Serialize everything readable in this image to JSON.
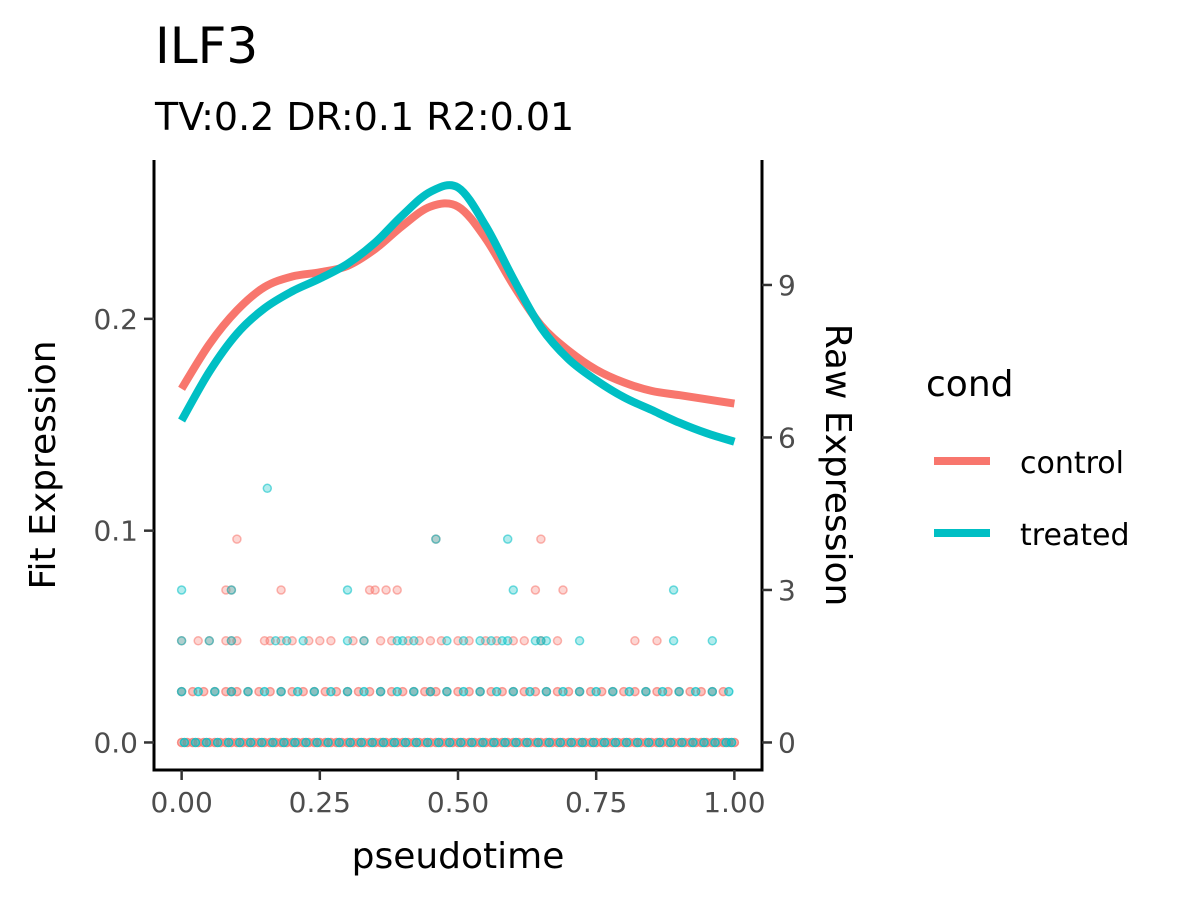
{
  "chart_data": {
    "type": "line",
    "title": "ILF3",
    "subtitle": "TV:0.2 DR:0.1 R2:0.01",
    "xlabel": "pseudotime",
    "ylabel_left": "Fit Expression",
    "ylabel_right": "Raw Expression",
    "xlim": [
      -0.05,
      1.05
    ],
    "ylim_left": [
      -0.013,
      0.275
    ],
    "ylim_right": [
      -0.542,
      11.46
    ],
    "right_axis_scale": 0.024,
    "x_ticks": [
      0.0,
      0.25,
      0.5,
      0.75,
      1.0
    ],
    "x_tick_labels": [
      "0.00",
      "0.25",
      "0.50",
      "0.75",
      "1.00"
    ],
    "y_left_ticks": [
      0.0,
      0.1,
      0.2
    ],
    "y_left_tick_labels": [
      "0.0",
      "0.1",
      "0.2"
    ],
    "y_right_ticks": [
      0,
      3,
      6,
      9
    ],
    "y_right_tick_labels": [
      "0",
      "3",
      "6",
      "9"
    ],
    "grid": false,
    "legend": {
      "title": "cond",
      "position": "right"
    },
    "colors": {
      "control": "#F8766D",
      "treated": "#00BFC4"
    },
    "series": [
      {
        "name": "control",
        "color": "#F8766D",
        "x": [
          0.0,
          0.05,
          0.1,
          0.15,
          0.2,
          0.25,
          0.3,
          0.35,
          0.4,
          0.45,
          0.5,
          0.55,
          0.6,
          0.65,
          0.7,
          0.75,
          0.8,
          0.85,
          0.9,
          0.95,
          1.0
        ],
        "y": [
          0.167,
          0.188,
          0.204,
          0.215,
          0.22,
          0.222,
          0.225,
          0.233,
          0.244,
          0.253,
          0.253,
          0.238,
          0.216,
          0.197,
          0.185,
          0.176,
          0.17,
          0.166,
          0.164,
          0.162,
          0.16
        ]
      },
      {
        "name": "treated",
        "color": "#00BFC4",
        "x": [
          0.0,
          0.05,
          0.1,
          0.15,
          0.2,
          0.25,
          0.3,
          0.35,
          0.4,
          0.45,
          0.5,
          0.55,
          0.6,
          0.65,
          0.7,
          0.75,
          0.8,
          0.85,
          0.9,
          0.95,
          1.0
        ],
        "y": [
          0.152,
          0.175,
          0.193,
          0.205,
          0.213,
          0.219,
          0.226,
          0.236,
          0.249,
          0.26,
          0.262,
          0.244,
          0.219,
          0.196,
          0.181,
          0.171,
          0.163,
          0.157,
          0.151,
          0.146,
          0.142
        ]
      }
    ],
    "raw_points": {
      "control": {
        "0": [
          0.0,
          0.01,
          0.02,
          0.03,
          0.04,
          0.05,
          0.06,
          0.07,
          0.08,
          0.09,
          0.1,
          0.11,
          0.12,
          0.13,
          0.14,
          0.15,
          0.16,
          0.17,
          0.18,
          0.19,
          0.2,
          0.21,
          0.22,
          0.23,
          0.24,
          0.25,
          0.26,
          0.27,
          0.28,
          0.29,
          0.3,
          0.31,
          0.32,
          0.33,
          0.34,
          0.35,
          0.36,
          0.37,
          0.38,
          0.39,
          0.4,
          0.41,
          0.42,
          0.43,
          0.44,
          0.45,
          0.46,
          0.47,
          0.48,
          0.49,
          0.5,
          0.51,
          0.52,
          0.53,
          0.54,
          0.55,
          0.56,
          0.57,
          0.58,
          0.59,
          0.6,
          0.61,
          0.62,
          0.63,
          0.64,
          0.65,
          0.66,
          0.67,
          0.68,
          0.69,
          0.7,
          0.71,
          0.72,
          0.73,
          0.74,
          0.75,
          0.76,
          0.77,
          0.78,
          0.79,
          0.8,
          0.81,
          0.82,
          0.83,
          0.84,
          0.85,
          0.86,
          0.87,
          0.88,
          0.89,
          0.9,
          0.91,
          0.92,
          0.93,
          0.94,
          0.95,
          0.96,
          0.97,
          0.98,
          0.99,
          1.0
        ],
        "1": [
          0.0,
          0.02,
          0.04,
          0.06,
          0.08,
          0.09,
          0.1,
          0.12,
          0.14,
          0.16,
          0.18,
          0.2,
          0.22,
          0.24,
          0.26,
          0.28,
          0.3,
          0.32,
          0.34,
          0.36,
          0.38,
          0.4,
          0.42,
          0.44,
          0.45,
          0.46,
          0.48,
          0.5,
          0.52,
          0.54,
          0.56,
          0.58,
          0.6,
          0.62,
          0.64,
          0.66,
          0.68,
          0.7,
          0.72,
          0.74,
          0.76,
          0.78,
          0.8,
          0.82,
          0.84,
          0.86,
          0.88,
          0.9,
          0.92,
          0.94,
          0.96,
          0.98
        ],
        "2": [
          0.0,
          0.03,
          0.05,
          0.08,
          0.09,
          0.1,
          0.15,
          0.16,
          0.18,
          0.2,
          0.23,
          0.25,
          0.27,
          0.31,
          0.33,
          0.36,
          0.38,
          0.41,
          0.43,
          0.45,
          0.47,
          0.5,
          0.52,
          0.55,
          0.57,
          0.6,
          0.62,
          0.65,
          0.68,
          0.82,
          0.86
        ],
        "3": [
          0.08,
          0.09,
          0.18,
          0.34,
          0.35,
          0.37,
          0.39,
          0.64,
          0.69
        ],
        "4": [
          0.1,
          0.46,
          0.65
        ]
      },
      "treated": {
        "0": [
          0.005,
          0.025,
          0.045,
          0.065,
          0.085,
          0.105,
          0.125,
          0.145,
          0.165,
          0.185,
          0.205,
          0.225,
          0.245,
          0.265,
          0.285,
          0.305,
          0.325,
          0.345,
          0.365,
          0.385,
          0.405,
          0.425,
          0.445,
          0.465,
          0.485,
          0.505,
          0.525,
          0.545,
          0.565,
          0.585,
          0.605,
          0.625,
          0.645,
          0.665,
          0.685,
          0.705,
          0.725,
          0.745,
          0.765,
          0.785,
          0.805,
          0.825,
          0.845,
          0.865,
          0.885,
          0.905,
          0.925,
          0.945,
          0.965,
          0.985,
          0.995
        ],
        "1": [
          0.0,
          0.03,
          0.06,
          0.09,
          0.12,
          0.15,
          0.18,
          0.21,
          0.24,
          0.27,
          0.3,
          0.33,
          0.36,
          0.39,
          0.42,
          0.45,
          0.48,
          0.51,
          0.54,
          0.57,
          0.6,
          0.63,
          0.66,
          0.69,
          0.72,
          0.75,
          0.78,
          0.81,
          0.84,
          0.87,
          0.9,
          0.93,
          0.96,
          0.99
        ],
        "2": [
          0.0,
          0.05,
          0.09,
          0.17,
          0.19,
          0.22,
          0.3,
          0.33,
          0.39,
          0.4,
          0.42,
          0.48,
          0.51,
          0.54,
          0.56,
          0.58,
          0.59,
          0.64,
          0.65,
          0.66,
          0.72,
          0.89,
          0.96
        ],
        "3": [
          0.0,
          0.09,
          0.3,
          0.6,
          0.89
        ],
        "4": [
          0.46,
          0.59
        ],
        "5": [
          0.155
        ]
      }
    }
  }
}
